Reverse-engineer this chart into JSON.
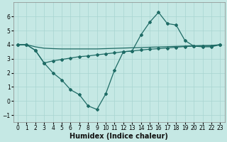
{
  "xlabel": "Humidex (Indice chaleur)",
  "bg_color": "#c5e8e4",
  "grid_color": "#a8d4d0",
  "line_color": "#1e6b65",
  "xlim": [
    -0.5,
    23.5
  ],
  "ylim": [
    -1.5,
    7.0
  ],
  "yticks": [
    -1,
    0,
    1,
    2,
    3,
    4,
    5,
    6
  ],
  "xticks": [
    0,
    1,
    2,
    3,
    4,
    5,
    6,
    7,
    8,
    9,
    10,
    11,
    12,
    13,
    14,
    15,
    16,
    17,
    18,
    19,
    20,
    21,
    22,
    23
  ],
  "s1_x": [
    0,
    1,
    2,
    3,
    4,
    5,
    6,
    7,
    8,
    9,
    10,
    11,
    12,
    13,
    14,
    15,
    16,
    17,
    18,
    19,
    20,
    21,
    22,
    23
  ],
  "s1_y": [
    4.0,
    4.0,
    3.6,
    2.7,
    2.0,
    1.5,
    0.8,
    0.45,
    -0.35,
    -0.6,
    0.5,
    2.2,
    3.5,
    3.55,
    4.7,
    5.6,
    6.3,
    5.5,
    5.4,
    4.3,
    3.9,
    3.85,
    3.85,
    4.0
  ],
  "s2_x": [
    0,
    1,
    2,
    3,
    4,
    5,
    6,
    7,
    8,
    9,
    10,
    11,
    12,
    13,
    14,
    15,
    16,
    17,
    18,
    19,
    20,
    21,
    22,
    23
  ],
  "s2_y": [
    4.0,
    4.0,
    3.6,
    2.7,
    2.85,
    2.95,
    3.05,
    3.15,
    3.2,
    3.28,
    3.35,
    3.42,
    3.5,
    3.55,
    3.62,
    3.68,
    3.72,
    3.77,
    3.82,
    3.87,
    3.9,
    3.9,
    3.9,
    4.0
  ],
  "s3_x": [
    0,
    1,
    2,
    3,
    4,
    5,
    6,
    7,
    8,
    9,
    10,
    11,
    12,
    13,
    14,
    15,
    16,
    17,
    18,
    19,
    20,
    21,
    22,
    23
  ],
  "s3_y": [
    4.0,
    4.0,
    3.85,
    3.75,
    3.72,
    3.7,
    3.7,
    3.7,
    3.7,
    3.7,
    3.72,
    3.74,
    3.76,
    3.78,
    3.8,
    3.82,
    3.84,
    3.86,
    3.88,
    3.9,
    3.92,
    3.94,
    3.95,
    4.0
  ]
}
